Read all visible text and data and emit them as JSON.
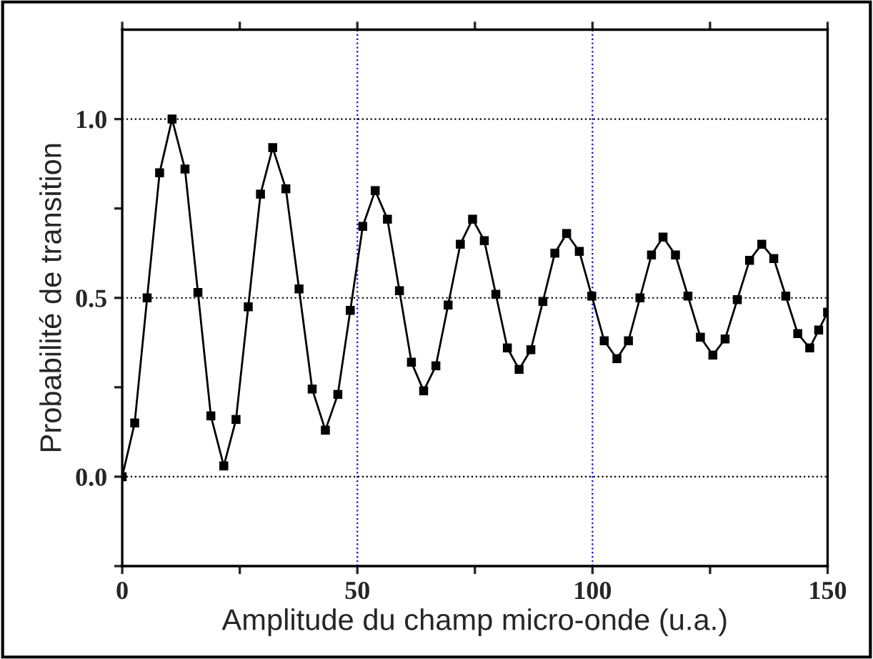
{
  "chart_data": {
    "type": "line",
    "xlabel": "Amplitude du champ micro-onde (u.a.)",
    "ylabel": "Probabilité de transition",
    "xlim": [
      0,
      150
    ],
    "ylim": [
      -0.25,
      1.25
    ],
    "xticks": [
      0,
      {
        "value": 25,
        "label": null
      },
      50,
      {
        "value": 75,
        "label": null
      },
      100,
      {
        "value": 125,
        "label": null
      },
      150
    ],
    "yticks": [
      {
        "value": -0.25,
        "label": null
      },
      {
        "value": 0,
        "label": "0.0"
      },
      {
        "value": 0.25,
        "label": null
      },
      0.5,
      {
        "value": 0.75,
        "label": null
      },
      {
        "value": 1,
        "label": "1.0"
      }
    ],
    "grid": "y",
    "marker": "square",
    "line_style": "solid",
    "ref_lines": [
      {
        "axis": "x",
        "value": 50,
        "color": "#0000ff",
        "line_style": "dotted"
      },
      {
        "axis": "x",
        "value": 100,
        "color": "#0000ff",
        "line_style": "dotted"
      }
    ],
    "x": [
      0,
      2.65,
      5.3,
      7.95,
      10.6,
      13.35,
      16.1,
      18.85,
      21.6,
      24.2,
      26.8,
      29.4,
      32,
      34.8,
      37.6,
      40.4,
      43.2,
      45.85,
      48.5,
      51.15,
      53.8,
      56.4,
      58.95,
      61.5,
      64.1,
      66.7,
      69.3,
      71.9,
      74.5,
      77.0,
      79.45,
      81.9,
      84.4,
      86.9,
      89.45,
      92.0,
      94.5,
      97.2,
      99.85,
      102.5,
      105.2,
      107.65,
      110.1,
      112.55,
      115,
      117.65,
      120.3,
      122.95,
      125.6,
      128.2,
      130.8,
      133.4,
      136,
      138.55,
      141.1,
      143.65,
      146.2,
      148.1,
      150
    ],
    "series": [
      {
        "color": "#000000",
        "values": [
          0,
          0.15,
          0.5,
          0.85,
          1.0,
          0.86,
          0.515,
          0.17,
          0.03,
          0.16,
          0.475,
          0.79,
          0.92,
          0.805,
          0.525,
          0.245,
          0.13,
          0.23,
          0.465,
          0.7,
          0.8,
          0.72,
          0.52,
          0.32,
          0.24,
          0.31,
          0.48,
          0.65,
          0.72,
          0.66,
          0.51,
          0.36,
          0.3,
          0.355,
          0.49,
          0.625,
          0.68,
          0.63,
          0.505,
          0.38,
          0.33,
          0.38,
          0.5,
          0.62,
          0.67,
          0.62,
          0.505,
          0.39,
          0.34,
          0.385,
          0.495,
          0.605,
          0.65,
          0.61,
          0.505,
          0.4,
          0.36,
          0.41,
          0.46
        ]
      }
    ]
  }
}
